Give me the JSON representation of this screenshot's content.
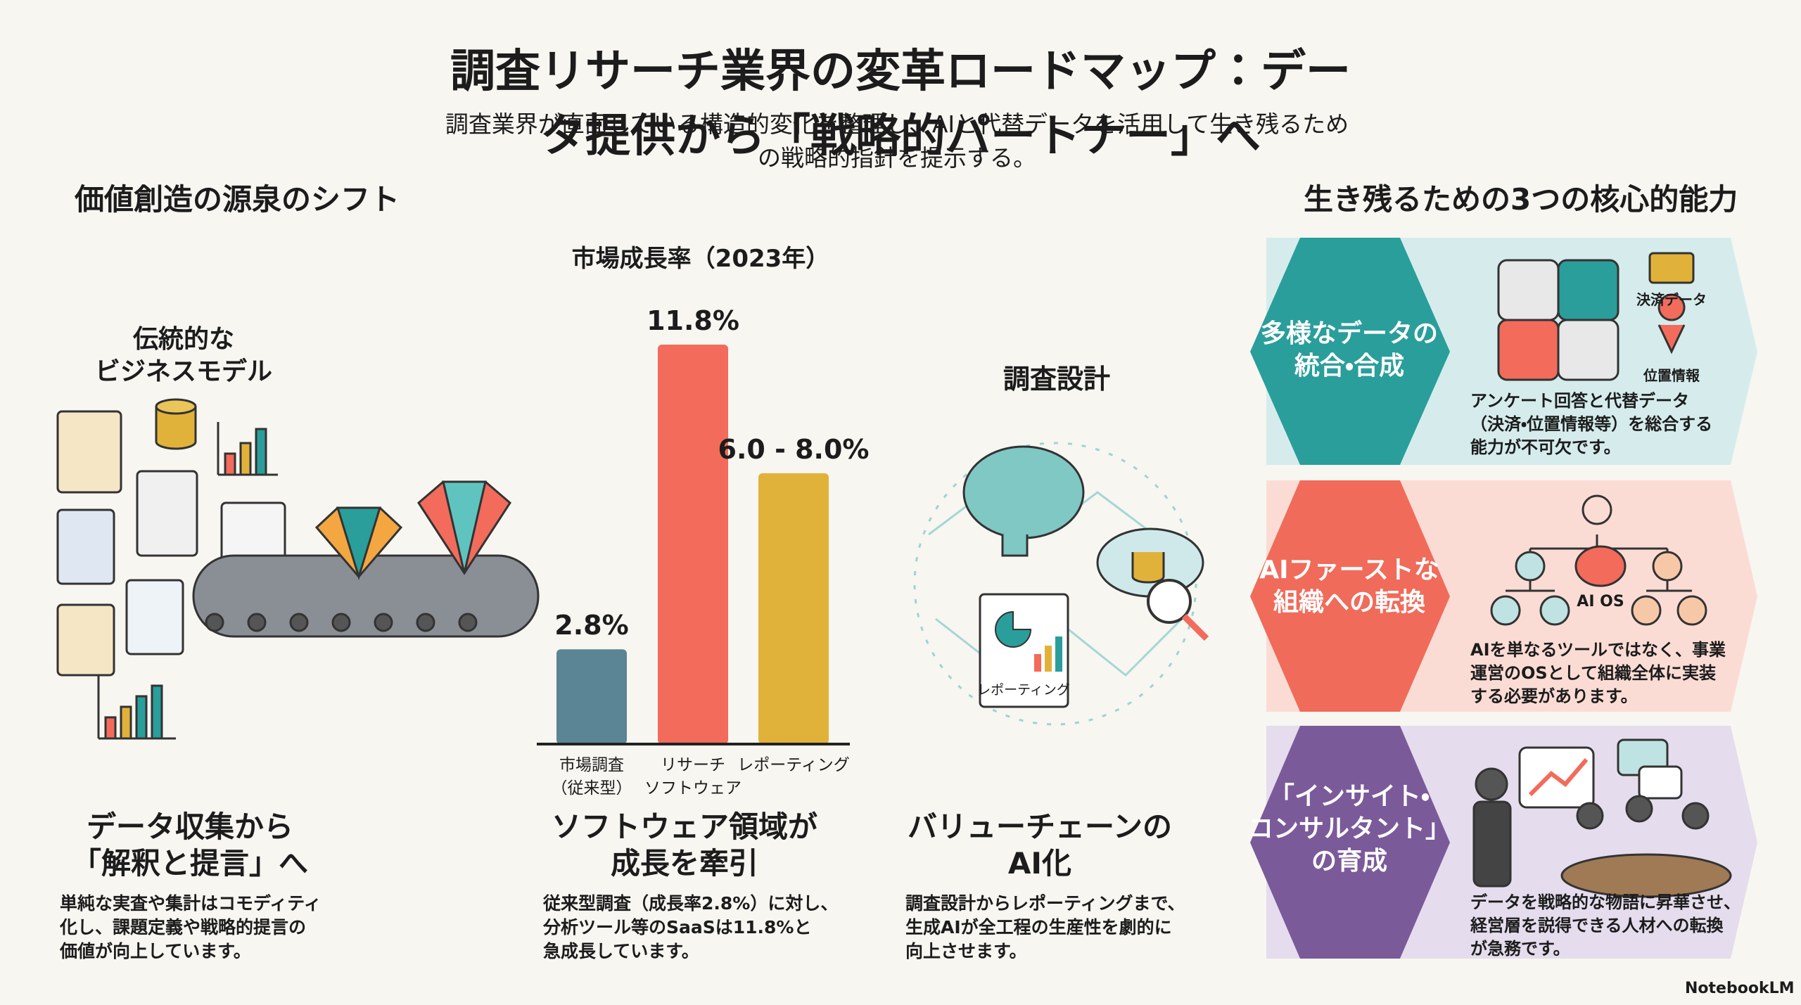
{
  "header": {
    "title": "調査リサーチ業界の変革ロードマップ：データ提供から「戦略的パートナー」へ",
    "subtitle": "調査業界が直面している構造的変化を整理し、AIと代替データを活用して生き残るための戦略的指針を提示する。"
  },
  "left_section": {
    "heading": "価値創造の源泉のシフト",
    "traditional_label": "伝統的な\nビジネスモデル",
    "design_label": "調査設計",
    "reporting_label": "レポーティング"
  },
  "chart_data": {
    "type": "bar",
    "title": "市場成長率（2023年）",
    "categories": [
      "市場調査\n（従来型）",
      "リサーチ\nソフトウェア",
      "レポーティング"
    ],
    "values": [
      2.8,
      11.8,
      8.0
    ],
    "value_labels": [
      "2.8%",
      "11.8%",
      "6.0 - 8.0%"
    ],
    "colors": [
      "#5b8594",
      "#f26b5b",
      "#e1b23a"
    ]
  },
  "columns": [
    {
      "heading": "データ収集から\n「解釈と提言」へ",
      "body": "単純な実査や集計はコモディティ\n化し、課題定義や戦略的提言の\n価値が向上しています。"
    },
    {
      "heading": "ソフトウェア領域が\n成長を牽引",
      "body": "従来型調査（成長率2.8%）に対し、\n分析ツール等のSaaSは11.8%と\n急成長しています。"
    },
    {
      "heading": "バリューチェーンの\nAI化",
      "body": "調査設計からレポーティングまで、\n生成AIが全工程の生産性を劇的に\n向上させます。"
    }
  ],
  "capabilities": {
    "heading": "生き残るための3つの核心的能力",
    "items": [
      {
        "title": "多様なデータの\n統合・合成",
        "body": "アンケート回答と代替データ\n（決済・位置情報等）を総合する\n能力が不可欠です。",
        "labels": [
          "決済データ",
          "位置情報"
        ]
      },
      {
        "title": "AIファーストな\n組織への転換",
        "body": "AIを単なるツールではなく、事業\n運営のOSとして組織全体に実装\nする必要があります。",
        "labels": [
          "AI OS"
        ]
      },
      {
        "title": "「インサイト・\nコンサルタント」\nの育成",
        "body": "データを戦略的な物語に昇華させ、\n経営層を説得できる人材への転換\nが急務です。",
        "labels": []
      }
    ]
  },
  "footer": {
    "brand": "NotebookLM"
  }
}
